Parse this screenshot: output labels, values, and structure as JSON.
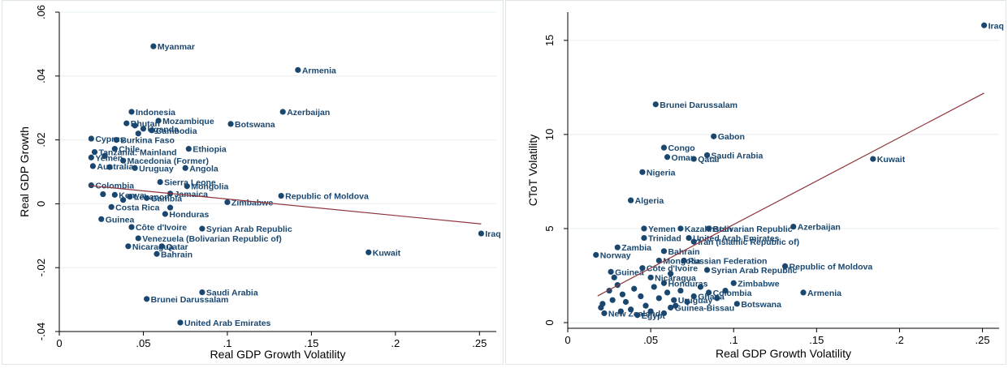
{
  "colors": {
    "marker": "#1a476f",
    "fit_line": "#90353b",
    "axis": "#000000",
    "gridline": "#eaf2f3",
    "label": "#1a476f"
  },
  "chart_data": [
    {
      "type": "scatter",
      "xlabel": "Real GDP Growth Volatility",
      "ylabel": "Real GDP Growth",
      "xlim": [
        0,
        0.26
      ],
      "ylim": [
        -0.04,
        0.06
      ],
      "xticks": [
        {
          "v": 0,
          "label": "0"
        },
        {
          "v": 0.05,
          "label": ".05"
        },
        {
          "v": 0.1,
          "label": ".1"
        },
        {
          "v": 0.15,
          "label": ".15"
        },
        {
          "v": 0.2,
          "label": ".2"
        },
        {
          "v": 0.25,
          "label": ".25"
        }
      ],
      "yticks": [
        {
          "v": -0.04,
          "label": "-.04"
        },
        {
          "v": -0.02,
          "label": "-.02"
        },
        {
          "v": 0,
          "label": "0"
        },
        {
          "v": 0.02,
          "label": ".02"
        },
        {
          "v": 0.04,
          "label": ".04"
        },
        {
          "v": 0.06,
          "label": ".06"
        }
      ],
      "grid": true,
      "fit_line": [
        [
          0.018,
          0.0057
        ],
        [
          0.251,
          -0.0063
        ]
      ],
      "points": [
        {
          "x": 0.056,
          "y": 0.0493,
          "label": "Myanmar"
        },
        {
          "x": 0.142,
          "y": 0.0419,
          "label": "Armenia"
        },
        {
          "x": 0.133,
          "y": 0.0288,
          "label": "Azerbaijan"
        },
        {
          "x": 0.043,
          "y": 0.0288,
          "label": "Indonesia"
        },
        {
          "x": 0.102,
          "y": 0.025,
          "label": "Botswana"
        },
        {
          "x": 0.059,
          "y": 0.026,
          "label": "Mozambique"
        },
        {
          "x": 0.04,
          "y": 0.0252,
          "label": "Bhutan"
        },
        {
          "x": 0.045,
          "y": 0.0245,
          "label": ""
        },
        {
          "x": 0.05,
          "y": 0.0235,
          "label": "Uganda"
        },
        {
          "x": 0.055,
          "y": 0.023,
          "label": "Cambodia"
        },
        {
          "x": 0.047,
          "y": 0.022,
          "label": ""
        },
        {
          "x": 0.019,
          "y": 0.0204,
          "label": "Cyprus"
        },
        {
          "x": 0.034,
          "y": 0.02,
          "label": "Burkina Faso"
        },
        {
          "x": 0.077,
          "y": 0.0172,
          "label": "Ethiopia"
        },
        {
          "x": 0.033,
          "y": 0.0172,
          "label": "Chile"
        },
        {
          "x": 0.021,
          "y": 0.0162,
          "label": "Tanzania: Mainland"
        },
        {
          "x": 0.027,
          "y": 0.015,
          "label": ""
        },
        {
          "x": 0.019,
          "y": 0.0145,
          "label": "Yemen"
        },
        {
          "x": 0.038,
          "y": 0.0135,
          "label": "Macedonia (Former)"
        },
        {
          "x": 0.02,
          "y": 0.0118,
          "label": "Australia"
        },
        {
          "x": 0.045,
          "y": 0.0112,
          "label": "Uruguay"
        },
        {
          "x": 0.075,
          "y": 0.0112,
          "label": "Angola"
        },
        {
          "x": 0.03,
          "y": 0.0115,
          "label": ""
        },
        {
          "x": 0.06,
          "y": 0.0068,
          "label": "Sierra Leone"
        },
        {
          "x": 0.019,
          "y": 0.0058,
          "label": "Colombia"
        },
        {
          "x": 0.076,
          "y": 0.0055,
          "label": "Mongolia"
        },
        {
          "x": 0.066,
          "y": 0.0032,
          "label": "Jamaica"
        },
        {
          "x": 0.132,
          "y": 0.0025,
          "label": "Republic of Moldova"
        },
        {
          "x": 0.033,
          "y": 0.0028,
          "label": "Kenya"
        },
        {
          "x": 0.026,
          "y": 0.003,
          "label": ""
        },
        {
          "x": 0.042,
          "y": 0.0022,
          "label": "Lebanon"
        },
        {
          "x": 0.052,
          "y": 0.0018,
          "label": "Gambia"
        },
        {
          "x": 0.1,
          "y": 0.0005,
          "label": "Zimbabwe"
        },
        {
          "x": 0.038,
          "y": 0.0012,
          "label": ""
        },
        {
          "x": 0.031,
          "y": -0.001,
          "label": "Costa Rica"
        },
        {
          "x": 0.066,
          "y": -0.0012,
          "label": ""
        },
        {
          "x": 0.063,
          "y": -0.0032,
          "label": "Honduras"
        },
        {
          "x": 0.025,
          "y": -0.0048,
          "label": "Guinea"
        },
        {
          "x": 0.043,
          "y": -0.0073,
          "label": "Côte d'Ivoire"
        },
        {
          "x": 0.085,
          "y": -0.0078,
          "label": "Syrian Arab Republic"
        },
        {
          "x": 0.047,
          "y": -0.0108,
          "label": "Venezuela (Bolivarian Republic of)"
        },
        {
          "x": 0.041,
          "y": -0.0133,
          "label": "Nicaragua"
        },
        {
          "x": 0.061,
          "y": -0.0133,
          "label": "Qatar"
        },
        {
          "x": 0.058,
          "y": -0.0157,
          "label": "Bahrain"
        },
        {
          "x": 0.184,
          "y": -0.0152,
          "label": "Kuwait"
        },
        {
          "x": 0.251,
          "y": -0.0093,
          "label": "Iraq"
        },
        {
          "x": 0.085,
          "y": -0.0277,
          "label": "Saudi Arabia"
        },
        {
          "x": 0.052,
          "y": -0.0298,
          "label": "Brunei Darussalam"
        },
        {
          "x": 0.072,
          "y": -0.0372,
          "label": "United Arab Emirates"
        }
      ]
    },
    {
      "type": "scatter",
      "xlabel": "Real GDP Growth Volatility",
      "ylabel": "CToT Volatility",
      "xlim": [
        0,
        0.26
      ],
      "ylim": [
        -0.3,
        16.5
      ],
      "xticks": [
        {
          "v": 0,
          "label": "0"
        },
        {
          "v": 0.05,
          "label": ".05"
        },
        {
          "v": 0.1,
          "label": ".1"
        },
        {
          "v": 0.15,
          "label": ".15"
        },
        {
          "v": 0.2,
          "label": ".2"
        },
        {
          "v": 0.25,
          "label": ".25"
        }
      ],
      "yticks": [
        {
          "v": 0,
          "label": "0"
        },
        {
          "v": 5,
          "label": "5"
        },
        {
          "v": 10,
          "label": "10"
        },
        {
          "v": 15,
          "label": "15"
        }
      ],
      "grid": true,
      "fit_line": [
        [
          0.018,
          1.42
        ],
        [
          0.251,
          12.2
        ]
      ],
      "points": [
        {
          "x": 0.251,
          "y": 15.8,
          "label": "Iraq"
        },
        {
          "x": 0.053,
          "y": 11.6,
          "label": "Brunei Darussalam"
        },
        {
          "x": 0.088,
          "y": 9.9,
          "label": "Gabon"
        },
        {
          "x": 0.058,
          "y": 9.3,
          "label": "Congo"
        },
        {
          "x": 0.084,
          "y": 8.9,
          "label": "Saudi Arabia"
        },
        {
          "x": 0.06,
          "y": 8.8,
          "label": "Oman"
        },
        {
          "x": 0.076,
          "y": 8.7,
          "label": "Qatar"
        },
        {
          "x": 0.184,
          "y": 8.7,
          "label": "Kuwait"
        },
        {
          "x": 0.045,
          "y": 8.0,
          "label": "Nigeria"
        },
        {
          "x": 0.038,
          "y": 6.5,
          "label": "Algeria"
        },
        {
          "x": 0.046,
          "y": 5.0,
          "label": "Yemen"
        },
        {
          "x": 0.068,
          "y": 5.0,
          "label": "Kazakhstan"
        },
        {
          "x": 0.085,
          "y": 5.0,
          "label": "Bolivarian Republic"
        },
        {
          "x": 0.136,
          "y": 5.1,
          "label": "Azerbaijan"
        },
        {
          "x": 0.046,
          "y": 4.5,
          "label": "Trinidad"
        },
        {
          "x": 0.073,
          "y": 4.5,
          "label": "United Arab Emirates"
        },
        {
          "x": 0.076,
          "y": 4.3,
          "label": "Iran (Islamic Republic of)"
        },
        {
          "x": 0.03,
          "y": 4.0,
          "label": "Zambia"
        },
        {
          "x": 0.058,
          "y": 3.8,
          "label": "Bahrain"
        },
        {
          "x": 0.017,
          "y": 3.6,
          "label": "Norway"
        },
        {
          "x": 0.055,
          "y": 3.3,
          "label": "Mongolia"
        },
        {
          "x": 0.07,
          "y": 3.3,
          "label": "Russian Federation"
        },
        {
          "x": 0.131,
          "y": 3.0,
          "label": "Republic of Moldova"
        },
        {
          "x": 0.045,
          "y": 2.9,
          "label": "Côte d'Ivoire"
        },
        {
          "x": 0.084,
          "y": 2.8,
          "label": "Syrian Arab Republic"
        },
        {
          "x": 0.026,
          "y": 2.7,
          "label": "Guinea"
        },
        {
          "x": 0.1,
          "y": 2.1,
          "label": "Zimbabwe"
        },
        {
          "x": 0.058,
          "y": 2.1,
          "label": "Honduras"
        },
        {
          "x": 0.142,
          "y": 1.6,
          "label": "Armenia"
        },
        {
          "x": 0.102,
          "y": 1.0,
          "label": "Botswana"
        },
        {
          "x": 0.062,
          "y": 0.8,
          "label": "Guinea-Bissau"
        },
        {
          "x": 0.022,
          "y": 0.5,
          "label": "New Zealand"
        },
        {
          "x": 0.042,
          "y": 0.4,
          "label": "Egypt"
        },
        {
          "x": 0.085,
          "y": 1.6,
          "label": "Colombia"
        },
        {
          "x": 0.076,
          "y": 1.4,
          "label": "Ghana"
        },
        {
          "x": 0.064,
          "y": 1.2,
          "label": "Uruguay"
        },
        {
          "x": 0.05,
          "y": 2.4,
          "label": "Nicaragua"
        },
        {
          "x": 0.04,
          "y": 1.8,
          "label": ""
        },
        {
          "x": 0.033,
          "y": 1.5,
          "label": ""
        },
        {
          "x": 0.027,
          "y": 1.2,
          "label": ""
        },
        {
          "x": 0.021,
          "y": 1.0,
          "label": ""
        },
        {
          "x": 0.02,
          "y": 0.8,
          "label": ""
        },
        {
          "x": 0.025,
          "y": 1.7,
          "label": ""
        },
        {
          "x": 0.03,
          "y": 2.0,
          "label": ""
        },
        {
          "x": 0.035,
          "y": 1.1,
          "label": ""
        },
        {
          "x": 0.038,
          "y": 0.7,
          "label": ""
        },
        {
          "x": 0.044,
          "y": 1.4,
          "label": ""
        },
        {
          "x": 0.047,
          "y": 0.9,
          "label": ""
        },
        {
          "x": 0.052,
          "y": 1.9,
          "label": ""
        },
        {
          "x": 0.055,
          "y": 1.3,
          "label": ""
        },
        {
          "x": 0.06,
          "y": 1.6,
          "label": ""
        },
        {
          "x": 0.065,
          "y": 0.9,
          "label": ""
        },
        {
          "x": 0.068,
          "y": 1.7,
          "label": ""
        },
        {
          "x": 0.072,
          "y": 1.1,
          "label": ""
        },
        {
          "x": 0.08,
          "y": 1.9,
          "label": ""
        },
        {
          "x": 0.09,
          "y": 1.3,
          "label": ""
        },
        {
          "x": 0.095,
          "y": 1.7,
          "label": ""
        },
        {
          "x": 0.05,
          "y": 0.6,
          "label": ""
        },
        {
          "x": 0.058,
          "y": 0.5,
          "label": ""
        },
        {
          "x": 0.032,
          "y": 0.6,
          "label": ""
        },
        {
          "x": 0.028,
          "y": 2.4,
          "label": ""
        },
        {
          "x": 0.062,
          "y": 2.6,
          "label": ""
        }
      ]
    }
  ]
}
